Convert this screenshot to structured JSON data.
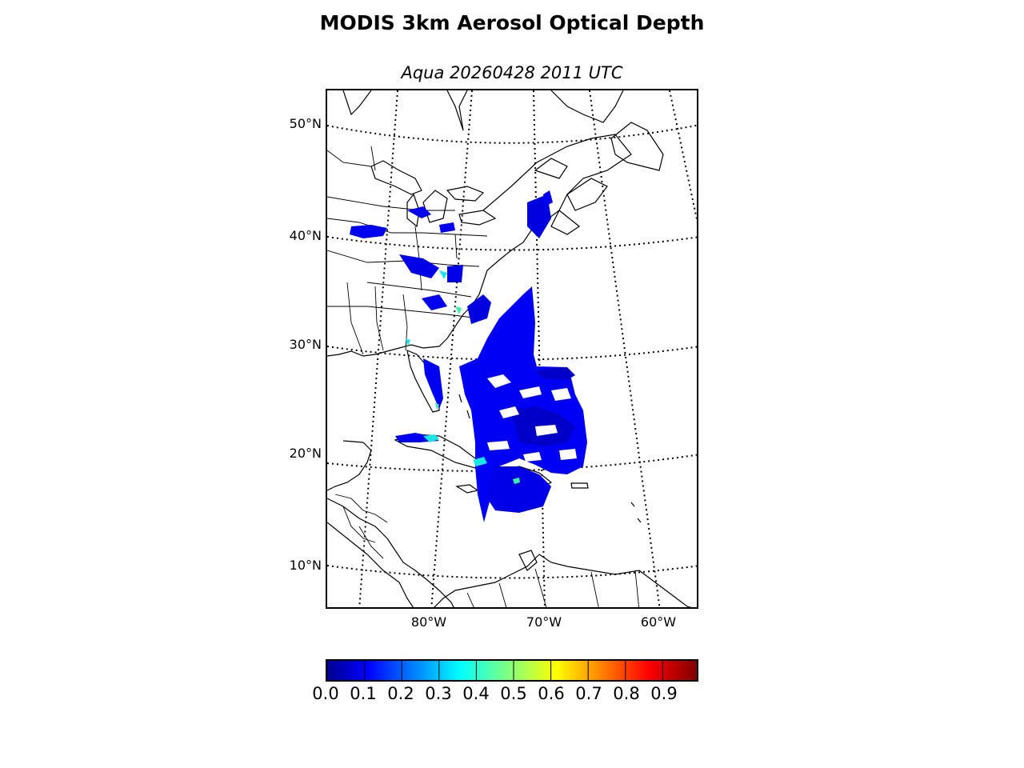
{
  "figure": {
    "title": "MODIS 3km Aerosol Optical Depth",
    "subtitle": "Aqua 20260428 2011 UTC"
  },
  "map": {
    "lat_labels": [
      "50°N",
      "40°N",
      "30°N",
      "20°N",
      "10°N"
    ],
    "lon_labels": [
      "80°W",
      "70°W",
      "60°W"
    ],
    "gridline_style": "dotted",
    "projection": "conic",
    "coastlines": true,
    "country_borders": true,
    "state_borders": true
  },
  "colorbar": {
    "colormap": "jet",
    "ticks": [
      "0.0",
      "0.1",
      "0.2",
      "0.3",
      "0.4",
      "0.5",
      "0.6",
      "0.7",
      "0.8",
      "0.9"
    ],
    "range": [
      0.0,
      1.0
    ],
    "orientation": "horizontal"
  },
  "colors": {
    "low_aod": "#0000ff",
    "dark_low": "#0000c8",
    "mid_aod": "#19e5e5",
    "green_aod": "#3cf0a0"
  }
}
